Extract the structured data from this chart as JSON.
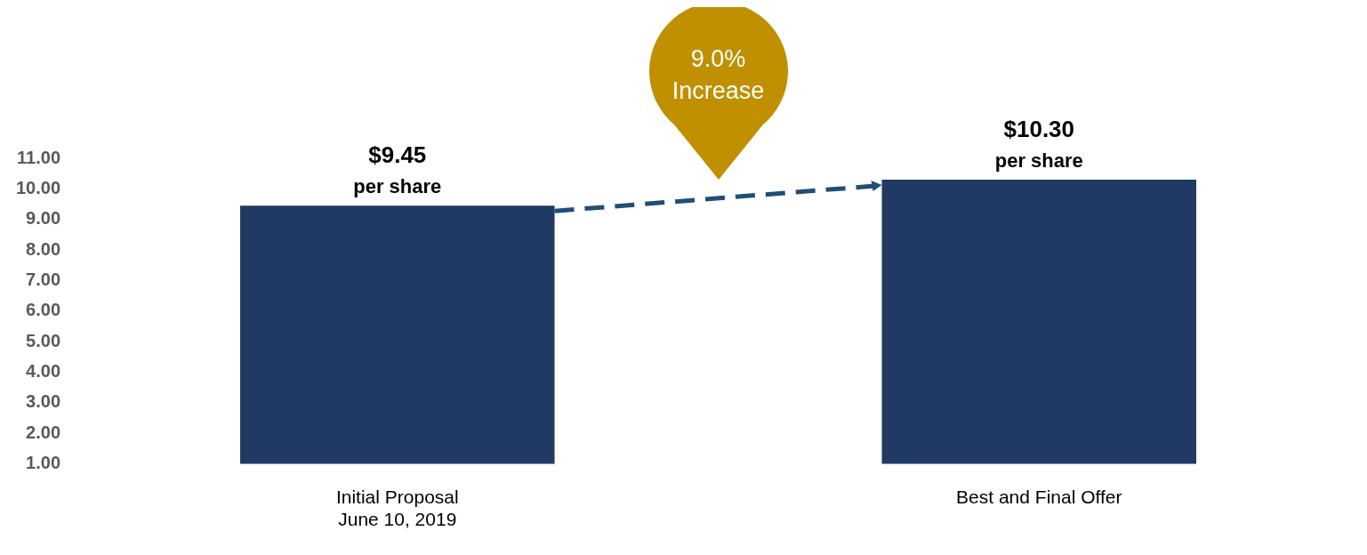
{
  "chart_data": {
    "type": "bar",
    "categories": [
      "Initial Proposal\nJune 10, 2019",
      "Best and Final Offer"
    ],
    "values": [
      9.45,
      10.3
    ],
    "color": "#213a64",
    "value_labels": [
      "$9.45\nper share",
      "$10.30\nper share"
    ],
    "ylim": [
      1,
      11
    ],
    "yticks": [
      {
        "value": 1,
        "label": "1.00"
      },
      {
        "value": 2,
        "label": "2.00"
      },
      {
        "value": 3,
        "label": "3.00"
      },
      {
        "value": 4,
        "label": "4.00"
      },
      {
        "value": 5,
        "label": "5.00"
      },
      {
        "value": 6,
        "label": "6.00"
      },
      {
        "value": 7,
        "label": "7.00"
      },
      {
        "value": 8,
        "label": "8.00"
      },
      {
        "value": 9,
        "label": "9.00"
      },
      {
        "value": 10,
        "label": "10.00"
      },
      {
        "value": 11,
        "label": "11.00"
      }
    ],
    "annotations": [
      "9.0% Increase"
    ]
  }
}
